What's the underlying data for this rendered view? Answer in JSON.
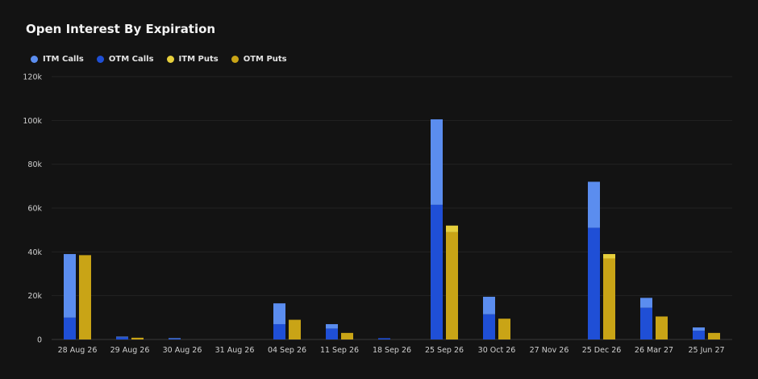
{
  "chart_data": {
    "type": "bar",
    "stacked": true,
    "title": "Open Interest By Expiration",
    "xlabel": "",
    "ylabel": "",
    "ylim": [
      0,
      120000
    ],
    "yticks": [
      0,
      20000,
      40000,
      60000,
      80000,
      100000,
      120000
    ],
    "ytick_labels": [
      "0",
      "20k",
      "40k",
      "60k",
      "80k",
      "100k",
      "120k"
    ],
    "grid": true,
    "legend_position": "top-left",
    "categories": [
      "28 Aug 26",
      "29 Aug 26",
      "30 Aug 26",
      "31 Aug 26",
      "04 Sep 26",
      "11 Sep 26",
      "18 Sep 26",
      "25 Sep 26",
      "30 Oct 26",
      "27 Nov 26",
      "25 Dec 26",
      "26 Mar 27",
      "25 Jun 27"
    ],
    "series": [
      {
        "name": "ITM Calls",
        "stack": "calls",
        "color": "#5b8def",
        "values": [
          29000,
          300,
          100,
          0,
          9500,
          2000,
          0,
          39000,
          8000,
          0,
          21000,
          4500,
          1500
        ]
      },
      {
        "name": "OTM Calls",
        "stack": "calls",
        "color": "#1f4fd6",
        "values": [
          10000,
          1000,
          500,
          0,
          7000,
          5000,
          600,
          61500,
          11500,
          0,
          51000,
          14500,
          4000
        ]
      },
      {
        "name": "ITM Puts",
        "stack": "puts",
        "color": "#e6cf3c",
        "values": [
          0,
          0,
          0,
          0,
          0,
          0,
          0,
          3000,
          0,
          0,
          2000,
          0,
          0
        ]
      },
      {
        "name": "OTM Puts",
        "stack": "puts",
        "color": "#c9a416",
        "values": [
          38500,
          800,
          0,
          0,
          9000,
          3000,
          0,
          49000,
          9500,
          0,
          37000,
          10500,
          3000
        ]
      }
    ]
  }
}
